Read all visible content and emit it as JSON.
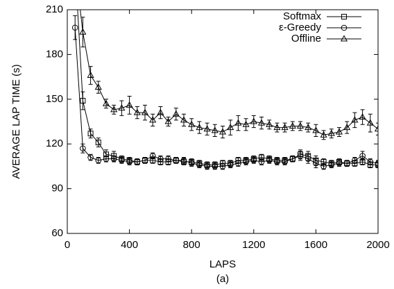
{
  "chart_data": {
    "type": "line",
    "xlabel": "LAPS",
    "ylabel": "AVERAGE LAP TIME (s)",
    "caption": "(a)",
    "x": [
      50,
      100,
      150,
      200,
      250,
      300,
      350,
      400,
      450,
      500,
      550,
      600,
      650,
      700,
      750,
      800,
      850,
      900,
      950,
      1000,
      1050,
      1100,
      1150,
      1200,
      1250,
      1300,
      1350,
      1400,
      1450,
      1500,
      1550,
      1600,
      1650,
      1700,
      1750,
      1800,
      1850,
      1900,
      1950,
      2000
    ],
    "xlim": [
      0,
      2000
    ],
    "xticks": [
      0,
      400,
      800,
      1200,
      1600,
      2000
    ],
    "ylim": [
      60,
      210
    ],
    "yticks": [
      60,
      90,
      120,
      150,
      180,
      210
    ],
    "legend": "top-right",
    "series": [
      {
        "name": "Softmax",
        "color": "#000000",
        "marker": "square",
        "values": [
          240,
          149,
          127,
          121,
          113,
          112,
          110,
          109,
          108,
          109,
          109,
          108,
          108,
          109,
          108,
          108,
          107,
          106,
          106,
          107,
          107,
          109,
          109,
          110,
          111,
          110,
          109,
          109,
          110,
          113,
          112,
          109,
          108,
          107,
          108,
          107,
          107,
          108,
          106,
          106
        ],
        "errors": [
          5,
          6,
          3,
          3,
          3,
          3,
          2,
          2,
          2,
          2,
          2,
          2,
          2,
          2,
          2,
          2,
          2,
          2,
          2,
          2,
          2,
          2,
          2,
          2,
          2,
          2,
          2,
          2,
          2,
          3,
          3,
          3,
          2,
          2,
          2,
          2,
          2,
          2,
          2,
          2
        ]
      },
      {
        "name": "ε-Greedy",
        "color": "#000000",
        "marker": "circle",
        "values": [
          198,
          117,
          111,
          109,
          110,
          110,
          109,
          108,
          108,
          109,
          112,
          110,
          110,
          109,
          109,
          107,
          106,
          105,
          105,
          105,
          106,
          107,
          108,
          109,
          108,
          109,
          108,
          108,
          110,
          112,
          110,
          107,
          105,
          106,
          107,
          107,
          109,
          112,
          108,
          107
        ],
        "errors": [
          8,
          3,
          2,
          2,
          2,
          2,
          2,
          2,
          2,
          2,
          2,
          2,
          2,
          2,
          2,
          2,
          2,
          2,
          2,
          2,
          2,
          2,
          2,
          2,
          2,
          2,
          2,
          2,
          2,
          3,
          3,
          3,
          2,
          2,
          2,
          2,
          2,
          3,
          2,
          2
        ]
      },
      {
        "name": "Offline",
        "color": "#000000",
        "marker": "triangle",
        "values": [
          240,
          195,
          166,
          158,
          147,
          143,
          144,
          146,
          141,
          141,
          136,
          141,
          135,
          140,
          136,
          133,
          131,
          130,
          129,
          128,
          131,
          134,
          133,
          135,
          134,
          133,
          131,
          131,
          132,
          132,
          131,
          129,
          126,
          127,
          128,
          131,
          136,
          138,
          134,
          130
        ],
        "errors": [
          10,
          10,
          6,
          4,
          3,
          3,
          5,
          6,
          4,
          5,
          4,
          4,
          3,
          4,
          4,
          4,
          4,
          4,
          4,
          4,
          5,
          5,
          4,
          4,
          4,
          3,
          3,
          3,
          3,
          3,
          3,
          4,
          3,
          3,
          3,
          4,
          5,
          5,
          6,
          4
        ]
      }
    ]
  }
}
